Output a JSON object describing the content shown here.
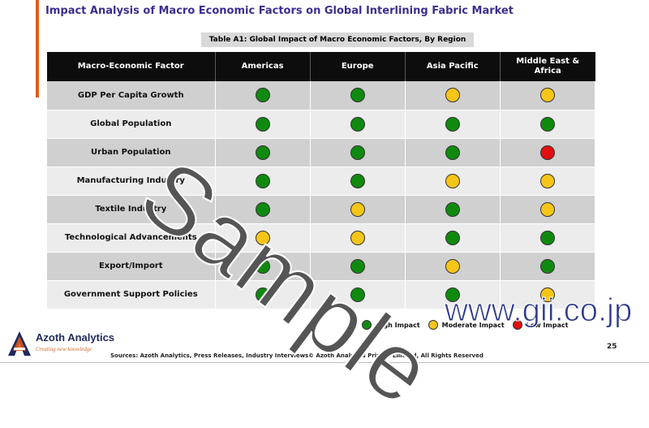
{
  "title": "Impact Analysis of Macro Economic Factors on Global Interlining Fabric Market",
  "table_caption": "Table A1: Global Impact of Macro Economic Factors, By Region",
  "columns": [
    "Macro-Economic Factor",
    "Americas",
    "Europe",
    "Asia Pacific",
    "Middle East & Africa"
  ],
  "colors": {
    "high": "#0f8a0f",
    "moderate": "#f5c518",
    "low": "#e01010",
    "accent": "#e35b16",
    "title": "#3b2f8f"
  },
  "rows": [
    {
      "factor": "GDP Per Capita Growth",
      "impacts": [
        "high",
        "high",
        "moderate",
        "moderate"
      ]
    },
    {
      "factor": "Global Population",
      "impacts": [
        "high",
        "high",
        "high",
        "high"
      ]
    },
    {
      "factor": "Urban Population",
      "impacts": [
        "high",
        "high",
        "high",
        "low"
      ]
    },
    {
      "factor": "Manufacturing Industry",
      "impacts": [
        "high",
        "high",
        "moderate",
        "moderate"
      ]
    },
    {
      "factor": "Textile Industry",
      "impacts": [
        "high",
        "moderate",
        "high",
        "moderate"
      ]
    },
    {
      "factor": "Technological Advancements",
      "impacts": [
        "moderate",
        "moderate",
        "high",
        "high"
      ]
    },
    {
      "factor": "Export/Import",
      "impacts": [
        "high",
        "high",
        "moderate",
        "high"
      ]
    },
    {
      "factor": "Government Support Policies",
      "impacts": [
        "high",
        "high",
        "high",
        "moderate"
      ]
    }
  ],
  "legend": [
    {
      "key": "high",
      "label": "High Impact"
    },
    {
      "key": "moderate",
      "label": "Moderate Impact"
    },
    {
      "key": "low",
      "label": "Low Impact"
    }
  ],
  "logo": {
    "name": "Azoth Analytics",
    "tagline": "Creating new knowledge"
  },
  "footer": {
    "sources": "Sources: Azoth Analytics, Press Releases, Industry Interviews",
    "copyright": "© Azoth Analytics Private Limited, All Rights Reserved",
    "page": "25"
  },
  "watermark": "Sample",
  "url_watermark": "www.gii.co.jp"
}
